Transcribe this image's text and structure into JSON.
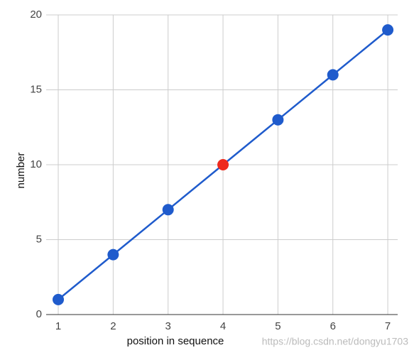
{
  "chart_data": {
    "type": "line",
    "x_label": "position in sequence",
    "y_label": "number",
    "x": [
      1,
      2,
      3,
      4,
      5,
      6,
      7
    ],
    "series": [
      {
        "values": [
          1,
          4,
          7,
          10,
          13,
          16,
          19
        ],
        "color": "#1f5bcc",
        "point_colors": [
          "#1f5bcc",
          "#1f5bcc",
          "#1f5bcc",
          "#ee2a1e",
          "#1f5bcc",
          "#1f5bcc",
          "#1f5bcc"
        ]
      }
    ],
    "xlim": [
      0.78,
      7.18
    ],
    "ylim": [
      0,
      20
    ],
    "xticks": [
      1,
      2,
      3,
      4,
      5,
      6,
      7
    ],
    "yticks": [
      0,
      5,
      10,
      15,
      20
    ],
    "grid": true,
    "watermark": "https://blog.csdn.net/dongyu1703"
  }
}
